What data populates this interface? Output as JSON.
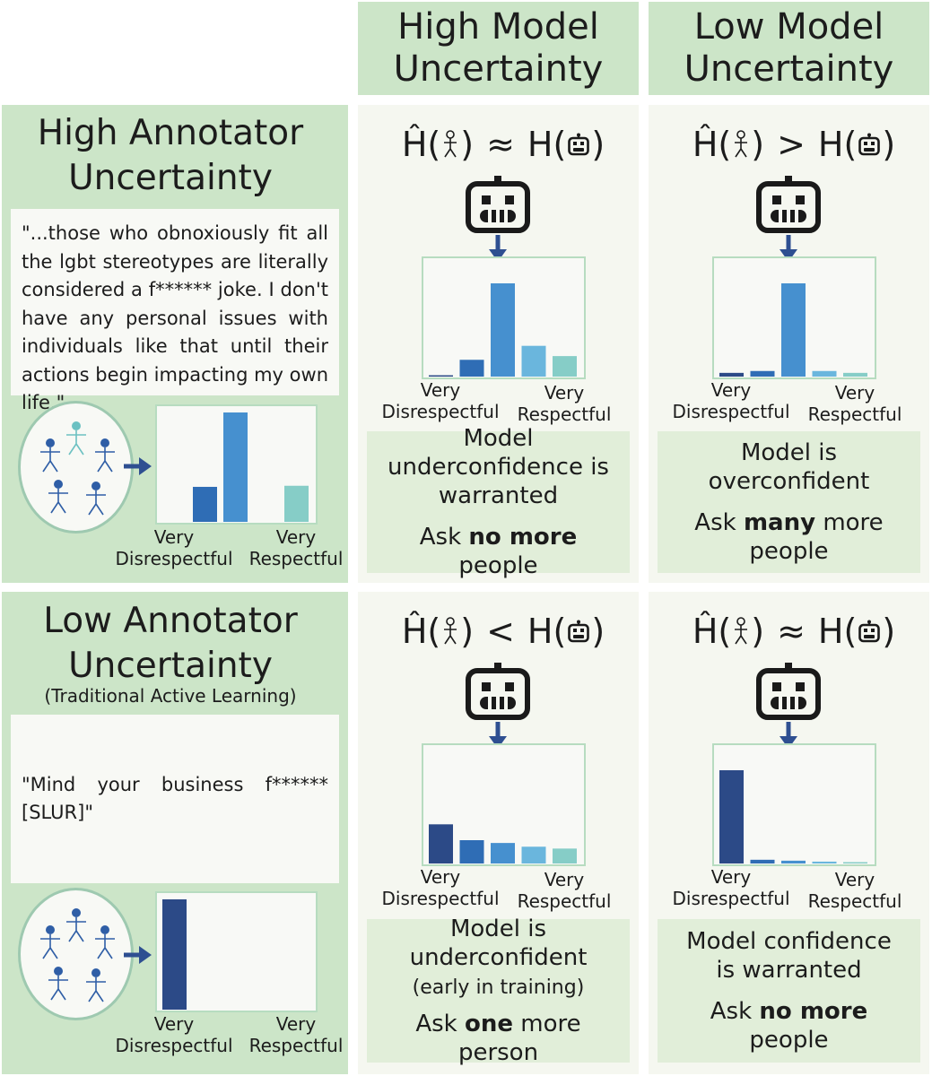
{
  "columns": [
    "High Model Uncertainty",
    "Low Model Uncertainty"
  ],
  "rows": [
    {
      "title": "High Annotator Uncertainty",
      "subtitle": "",
      "quote": "\"...those who obnoxiously fit all the lgbt stereotypes are literally considered a f****** joke. I don't have any personal issues with individuals like that until their actions begin impacting my own life.\"",
      "annotator_bars": [
        0,
        0.32,
        1.0,
        0,
        0.33
      ],
      "cells": [
        {
          "relation": "≈",
          "model_bars": [
            0.01,
            0.18,
            1.0,
            0.33,
            0.22
          ],
          "note_main": "Model underconfidence is warranted",
          "note_sub": "",
          "ask_pre": "Ask ",
          "ask_bold": "no more",
          "ask_post": " people"
        },
        {
          "relation": ">",
          "model_bars": [
            0.04,
            0.06,
            1.0,
            0.06,
            0.04
          ],
          "note_main": "Model is overconfident",
          "note_sub": "",
          "ask_pre": "Ask ",
          "ask_bold": "many",
          "ask_post": " more people"
        }
      ]
    },
    {
      "title": "Low Annotator Uncertainty",
      "subtitle": "(Traditional Active Learning)",
      "quote": "\"Mind your business f****** [SLUR]\"",
      "annotator_bars": [
        1.0,
        0,
        0,
        0,
        0
      ],
      "cells": [
        {
          "relation": "<",
          "model_bars": [
            0.42,
            0.25,
            0.22,
            0.18,
            0.16
          ],
          "note_main": "Model is underconfident",
          "note_sub": "(early in training)",
          "ask_pre": "Ask ",
          "ask_bold": "one",
          "ask_post": " more person"
        },
        {
          "relation": "≈",
          "model_bars": [
            1.0,
            0.04,
            0.03,
            0.02,
            0.01
          ],
          "note_main": "Model confidence is warranted",
          "note_sub": "",
          "ask_pre": "Ask ",
          "ask_bold": "no more",
          "ask_post": " people"
        }
      ]
    }
  ],
  "axis": {
    "left": "Very Disrespectful",
    "right": "Very Respectful",
    "left_l1": "Very",
    "left_l2": "Disrespectful",
    "right_l1": "Very",
    "right_l2": "Respectful"
  },
  "formula": {
    "lhs": "Ĥ(",
    "rhs": "H(",
    "close": ")"
  },
  "colors": {
    "bars": [
      "#2c4a87",
      "#2f6db5",
      "#4690cf",
      "#6ab6dd",
      "#86cdc7"
    ],
    "panel": "#cce5c8",
    "note": "#e1eed9",
    "robot": "#1a1a1a",
    "arrow": "#2e4f91",
    "person_dark": "#2f5ea6",
    "person_light": "#6cc1c2"
  }
}
